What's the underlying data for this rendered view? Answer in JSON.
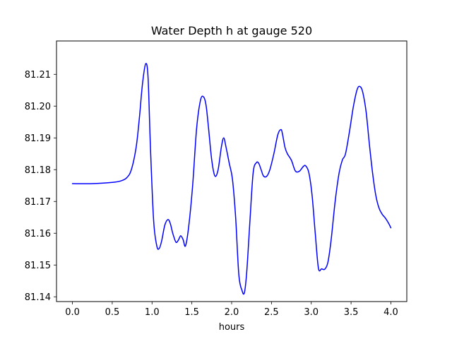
{
  "chart_data": {
    "type": "line",
    "title": "Water Depth h at gauge 520",
    "xlabel": "hours",
    "ylabel": "",
    "xlim": [
      -0.2,
      4.2
    ],
    "ylim": [
      81.1385,
      81.2205
    ],
    "xticks": [
      0.0,
      0.5,
      1.0,
      1.5,
      2.0,
      2.5,
      3.0,
      3.5,
      4.0
    ],
    "xtick_labels": [
      "0.0",
      "0.5",
      "1.0",
      "1.5",
      "2.0",
      "2.5",
      "3.0",
      "3.5",
      "4.0"
    ],
    "yticks": [
      81.14,
      81.15,
      81.16,
      81.17,
      81.18,
      81.19,
      81.2,
      81.21
    ],
    "ytick_labels": [
      "81.14",
      "81.15",
      "81.16",
      "81.17",
      "81.18",
      "81.19",
      "81.20",
      "81.21"
    ],
    "grid": false,
    "series": [
      {
        "color": "#0000ff",
        "x": [
          0.0,
          0.25,
          0.5,
          0.6,
          0.68,
          0.74,
          0.8,
          0.84,
          0.88,
          0.92,
          0.95,
          0.98,
          1.02,
          1.06,
          1.09,
          1.12,
          1.16,
          1.2,
          1.23,
          1.26,
          1.3,
          1.33,
          1.36,
          1.39,
          1.42,
          1.46,
          1.51,
          1.56,
          1.61,
          1.65,
          1.68,
          1.71,
          1.75,
          1.79,
          1.83,
          1.87,
          1.9,
          1.93,
          1.97,
          2.01,
          2.05,
          2.09,
          2.13,
          2.16,
          2.19,
          2.23,
          2.27,
          2.31,
          2.34,
          2.37,
          2.4,
          2.44,
          2.48,
          2.53,
          2.58,
          2.62,
          2.64,
          2.67,
          2.7,
          2.75,
          2.8,
          2.85,
          2.9,
          2.93,
          2.97,
          3.01,
          3.05,
          3.09,
          3.13,
          3.17,
          3.21,
          3.25,
          3.3,
          3.35,
          3.39,
          3.43,
          3.48,
          3.53,
          3.58,
          3.62,
          3.65,
          3.69,
          3.73,
          3.77,
          3.81,
          3.85,
          3.89,
          3.93,
          3.97,
          4.0
        ],
        "y": [
          81.1756,
          81.1756,
          81.176,
          81.1764,
          81.1774,
          81.18,
          81.187,
          81.196,
          81.207,
          81.2133,
          81.209,
          81.187,
          81.164,
          81.156,
          81.1552,
          81.1575,
          81.1625,
          81.1643,
          81.163,
          81.16,
          81.1572,
          81.1578,
          81.1592,
          81.158,
          81.156,
          81.162,
          81.175,
          81.193,
          81.202,
          81.2028,
          81.2,
          81.193,
          81.183,
          81.178,
          81.18,
          81.187,
          81.19,
          81.187,
          81.182,
          81.177,
          81.165,
          81.147,
          81.142,
          81.1413,
          81.148,
          81.164,
          81.179,
          81.1822,
          81.182,
          81.18,
          81.178,
          81.1779,
          81.18,
          81.185,
          81.191,
          81.1926,
          81.191,
          81.187,
          81.185,
          81.183,
          81.1796,
          81.1795,
          81.181,
          81.1812,
          81.179,
          81.172,
          81.16,
          81.149,
          81.1488,
          81.1487,
          81.151,
          81.158,
          81.17,
          81.179,
          81.183,
          81.185,
          81.192,
          81.2,
          81.2055,
          81.206,
          81.204,
          81.198,
          81.188,
          81.179,
          81.172,
          81.168,
          81.166,
          81.1648,
          81.1632,
          81.1617
        ]
      }
    ]
  }
}
